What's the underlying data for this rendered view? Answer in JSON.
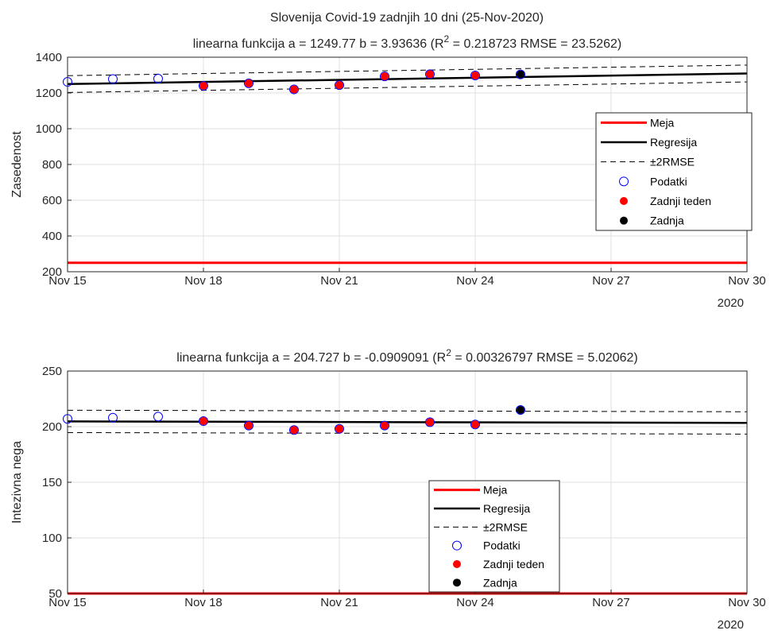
{
  "figure_title": "Slovenija Covid-19 zadnjih 10 dni (25-Nov-2020)",
  "colors": {
    "meja": "#ff0000",
    "regresija": "#000000",
    "podatki": "#0000ff",
    "zadnji_teden": "#ff0000",
    "zadnja": "#000000",
    "grid": "#dfdfdf"
  },
  "chart_data": [
    {
      "type": "scatter",
      "title": "linearna funkcija a =  1249.77 b = 3.93636 (R^2 = 0.218723  RMSE = 23.5262)",
      "title_parts": {
        "pre": "linearna funkcija a =  1249.77 b = 3.93636 (R",
        "sup": "2",
        "post": " = 0.218723  RMSE = 23.5262)"
      },
      "ylabel": "Zasedenost",
      "xlabel": "",
      "xlim": [
        15,
        30
      ],
      "ylim": [
        200,
        1400
      ],
      "yticks": [
        200,
        400,
        600,
        800,
        1000,
        1200,
        1400
      ],
      "xticks": [
        15,
        18,
        21,
        24,
        27,
        30
      ],
      "xticklabels": [
        "Nov 15",
        "Nov 18",
        "Nov 21",
        "Nov 24",
        "Nov 27",
        "Nov 30"
      ],
      "year_label": "2020",
      "grid": true,
      "legend_placement": "right",
      "legend": [
        "Meja",
        "Regresija",
        "±2RMSE",
        "Podatki",
        "Zadnji teden",
        "Zadnja"
      ],
      "meja": 250,
      "regression": {
        "a": 1249.77,
        "b": 3.93636,
        "x0": 15,
        "rmse": 23.5262,
        "band": 2
      },
      "series": [
        {
          "name": "Podatki",
          "marker": "open-circle",
          "x": [
            15,
            16,
            17,
            18,
            19,
            20,
            21,
            22,
            23,
            24,
            25
          ],
          "values": [
            1262,
            1278,
            1280,
            1240,
            1254,
            1220,
            1244,
            1293,
            1305,
            1298,
            1304
          ]
        },
        {
          "name": "Zadnji teden",
          "marker": "filled-circle",
          "x": [
            18,
            19,
            20,
            21,
            22,
            23,
            24
          ],
          "values": [
            1240,
            1254,
            1220,
            1244,
            1293,
            1305,
            1298
          ]
        },
        {
          "name": "Zadnja",
          "marker": "filled-circle",
          "x": [
            25
          ],
          "values": [
            1304
          ]
        }
      ]
    },
    {
      "type": "scatter",
      "title": "linearna funkcija a =  204.727 b = -0.0909091 (R^2 = 0.00326797  RMSE = 5.02062)",
      "title_parts": {
        "pre": "linearna funkcija a =  204.727 b = -0.0909091 (R",
        "sup": "2",
        "post": " = 0.00326797  RMSE = 5.02062)"
      },
      "ylabel": "Intezivna nega",
      "xlabel": "",
      "xlim": [
        15,
        30
      ],
      "ylim": [
        50,
        250
      ],
      "yticks": [
        50,
        100,
        150,
        200,
        250
      ],
      "xticks": [
        15,
        18,
        21,
        24,
        27,
        30
      ],
      "xticklabels": [
        "Nov 15",
        "Nov 18",
        "Nov 21",
        "Nov 24",
        "Nov 27",
        "Nov 30"
      ],
      "year_label": "2020",
      "grid": true,
      "legend_placement": "bottom-center",
      "legend": [
        "Meja",
        "Regresija",
        "±2RMSE",
        "Podatki",
        "Zadnji teden",
        "Zadnja"
      ],
      "meja": 50,
      "regression": {
        "a": 204.727,
        "b": -0.0909091,
        "x0": 15,
        "rmse": 5.02062,
        "band": 2
      },
      "series": [
        {
          "name": "Podatki",
          "marker": "open-circle",
          "x": [
            15,
            16,
            17,
            18,
            19,
            20,
            21,
            22,
            23,
            24,
            25
          ],
          "values": [
            207,
            208,
            209,
            205,
            201,
            197,
            198,
            201,
            204,
            202,
            215
          ]
        },
        {
          "name": "Zadnji teden",
          "marker": "filled-circle",
          "x": [
            18,
            19,
            20,
            21,
            22,
            23,
            24
          ],
          "values": [
            205,
            201,
            197,
            198,
            201,
            204,
            202
          ]
        },
        {
          "name": "Zadnja",
          "marker": "filled-circle",
          "x": [
            25
          ],
          "values": [
            215
          ]
        }
      ]
    }
  ]
}
